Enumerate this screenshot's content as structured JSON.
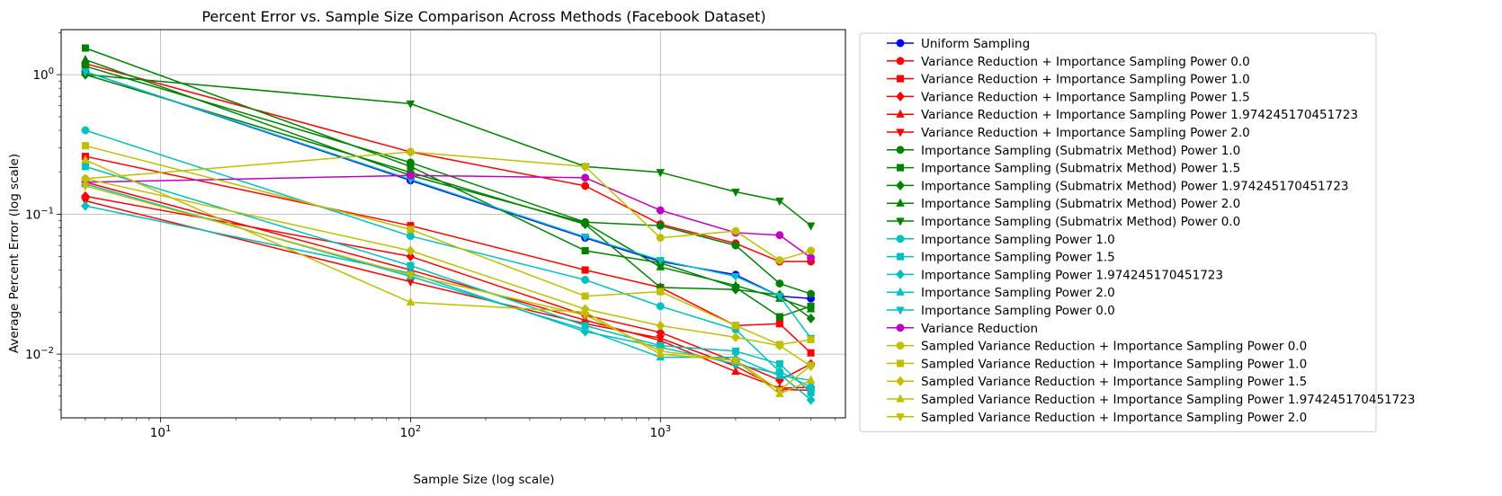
{
  "chart_data": {
    "type": "line",
    "title": "Percent Error vs. Sample Size Comparison Across Methods (Facebook Dataset)",
    "xlabel": "Sample Size (log scale)",
    "ylabel": "Average Percent Error (log scale)",
    "xscale": "log",
    "yscale": "log",
    "xlim": [
      4,
      5500
    ],
    "ylim": [
      0.0035,
      2.1
    ],
    "grid": true,
    "legend_placement": "outside right",
    "x_ticks": [
      {
        "value": 10,
        "base": "10",
        "exp": "1"
      },
      {
        "value": 100,
        "base": "10",
        "exp": "2"
      },
      {
        "value": 1000,
        "base": "10",
        "exp": "3"
      }
    ],
    "y_ticks": [
      {
        "value": 0.01,
        "base": "10",
        "exp": "−2"
      },
      {
        "value": 0.1,
        "base": "10",
        "exp": "−1"
      },
      {
        "value": 1,
        "base": "10",
        "exp": "0"
      }
    ],
    "x": [
      5,
      100,
      500,
      1000,
      2000,
      3000,
      4000
    ],
    "series": [
      {
        "name": "Uniform Sampling",
        "color": "#0000ff",
        "marker": "circle",
        "values": [
          1.05,
          0.175,
          0.068,
          0.046,
          0.037,
          0.026,
          0.025
        ]
      },
      {
        "name": "Variance Reduction + Importance Sampling Power 0.0",
        "color": "#ff0000",
        "marker": "circle",
        "values": [
          1.2,
          0.28,
          0.16,
          0.085,
          0.062,
          0.046,
          0.046
        ]
      },
      {
        "name": "Variance Reduction + Importance Sampling Power 1.0",
        "color": "#ff0000",
        "marker": "square",
        "values": [
          0.26,
          0.083,
          0.04,
          0.03,
          0.016,
          0.0165,
          0.0102
        ]
      },
      {
        "name": "Variance Reduction + Importance Sampling Power 1.5",
        "color": "#ff0000",
        "marker": "diamond",
        "values": [
          0.135,
          0.05,
          0.019,
          0.0143,
          0.0088,
          0.0065,
          0.0085
        ]
      },
      {
        "name": "Variance Reduction + Importance Sampling Power 1.974245170451723",
        "color": "#ff0000",
        "marker": "triangle-up",
        "values": [
          0.17,
          0.04,
          0.0175,
          0.0125,
          0.0075,
          0.0057,
          0.0058
        ]
      },
      {
        "name": "Variance Reduction + Importance Sampling Power 2.0",
        "color": "#ff0000",
        "marker": "triangle-down",
        "values": [
          0.125,
          0.033,
          0.0165,
          0.013,
          0.0082,
          0.0056,
          0.0055
        ]
      },
      {
        "name": "Importance Sampling (Submatrix Method) Power 1.0",
        "color": "#008000",
        "marker": "circle",
        "values": [
          1.15,
          0.235,
          0.088,
          0.083,
          0.06,
          0.032,
          0.027
        ]
      },
      {
        "name": "Importance Sampling (Submatrix Method) Power 1.5",
        "color": "#008000",
        "marker": "square",
        "values": [
          1.55,
          0.22,
          0.055,
          0.045,
          0.03,
          0.0185,
          0.022
        ]
      },
      {
        "name": "Importance Sampling (Submatrix Method) Power 1.974245170451723",
        "color": "#008000",
        "marker": "diamond",
        "values": [
          1.0,
          0.2,
          0.085,
          0.03,
          0.029,
          0.0265,
          0.018
        ]
      },
      {
        "name": "Importance Sampling (Submatrix Method) Power 2.0",
        "color": "#008000",
        "marker": "triangle-up",
        "values": [
          1.28,
          0.19,
          0.087,
          0.042,
          0.031,
          0.025,
          0.021
        ]
      },
      {
        "name": "Importance Sampling (Submatrix Method) Power 0.0",
        "color": "#008000",
        "marker": "triangle-down",
        "values": [
          1.0,
          0.62,
          0.22,
          0.2,
          0.145,
          0.125,
          0.083
        ]
      },
      {
        "name": "Importance Sampling Power 1.0",
        "color": "#00bfbf",
        "marker": "circle",
        "values": [
          0.4,
          0.07,
          0.034,
          0.022,
          0.015,
          0.0075,
          0.0058
        ]
      },
      {
        "name": "Importance Sampling Power 1.5",
        "color": "#00bfbf",
        "marker": "square",
        "values": [
          0.22,
          0.043,
          0.016,
          0.0115,
          0.0105,
          0.0085,
          0.0053
        ]
      },
      {
        "name": "Importance Sampling Power 1.974245170451723",
        "color": "#00bfbf",
        "marker": "diamond",
        "values": [
          0.115,
          0.038,
          0.0145,
          0.0112,
          0.0085,
          0.0072,
          0.0047
        ]
      },
      {
        "name": "Importance Sampling Power 2.0",
        "color": "#00bfbf",
        "marker": "triangle-up",
        "values": [
          0.165,
          0.036,
          0.015,
          0.0095,
          0.0095,
          0.007,
          0.0065
        ]
      },
      {
        "name": "Importance Sampling Power 0.0",
        "color": "#00bfbf",
        "marker": "triangle-down",
        "values": [
          1.05,
          0.178,
          0.069,
          0.047,
          0.036,
          0.026,
          0.013
        ]
      },
      {
        "name": "Variance Reduction",
        "color": "#bf00bf",
        "marker": "circle",
        "values": [
          0.17,
          0.19,
          0.183,
          0.107,
          0.074,
          0.071,
          0.049
        ]
      },
      {
        "name": "Sampled Variance Reduction + Importance Sampling Power 0.0",
        "color": "#bfbf00",
        "marker": "circle",
        "values": [
          0.18,
          0.28,
          0.22,
          0.068,
          0.076,
          0.047,
          0.055
        ]
      },
      {
        "name": "Sampled Variance Reduction + Importance Sampling Power 1.0",
        "color": "#bfbf00",
        "marker": "square",
        "values": [
          0.31,
          0.078,
          0.026,
          0.028,
          0.016,
          0.0117,
          0.0127
        ]
      },
      {
        "name": "Sampled Variance Reduction + Importance Sampling Power 1.5",
        "color": "#bfbf00",
        "marker": "diamond",
        "values": [
          0.18,
          0.055,
          0.021,
          0.016,
          0.0132,
          0.0115,
          0.0082
        ]
      },
      {
        "name": "Sampled Variance Reduction + Importance Sampling Power 1.974245170451723",
        "color": "#bfbf00",
        "marker": "triangle-up",
        "values": [
          0.245,
          0.0235,
          0.02,
          0.01,
          0.009,
          0.0052,
          0.0065
        ]
      },
      {
        "name": "Sampled Variance Reduction + Importance Sampling Power 2.0",
        "color": "#bfbf00",
        "marker": "triangle-down",
        "values": [
          0.16,
          0.037,
          0.019,
          0.0105,
          0.009,
          0.0055,
          0.0083
        ]
      }
    ]
  }
}
